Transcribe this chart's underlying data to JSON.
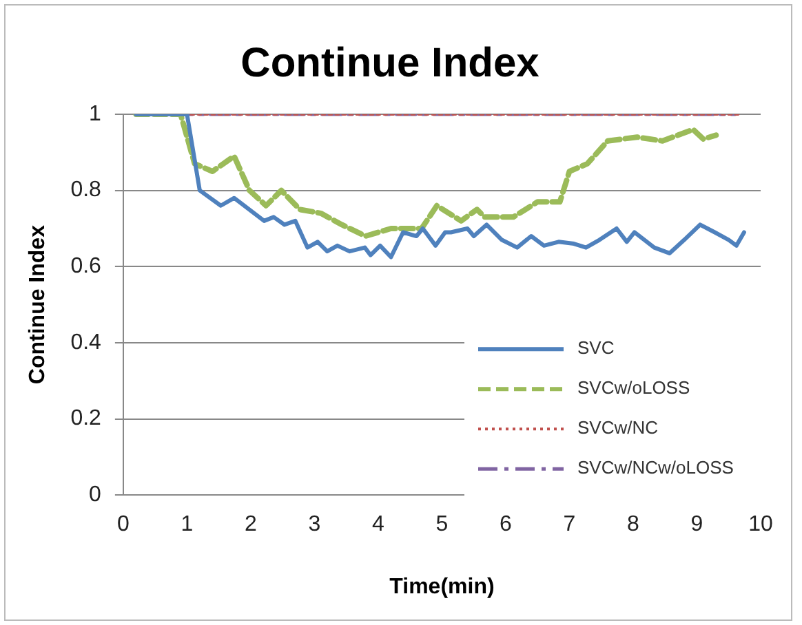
{
  "chart_data": {
    "type": "line",
    "title": "Continue Index",
    "xlabel": "Time(min)",
    "ylabel": "Continue Index",
    "xlim": [
      0,
      10
    ],
    "xticks": [
      0,
      1,
      2,
      3,
      4,
      5,
      6,
      7,
      8,
      9,
      10
    ],
    "ylim": [
      0,
      1
    ],
    "yticks": [
      0,
      0.2,
      0.4,
      0.6,
      0.8,
      1
    ],
    "grid": "y",
    "legend": "bottom right",
    "marker": "none",
    "series": [
      {
        "name": "SVC",
        "color": "#4f81bd",
        "line_style": "solid",
        "x": [
          0.2,
          1.0,
          1.2,
          1.53,
          1.74,
          2.21,
          2.36,
          2.53,
          2.7,
          2.89,
          3.05,
          3.2,
          3.36,
          3.55,
          3.79,
          3.88,
          4.03,
          4.2,
          4.39,
          4.6,
          4.7,
          4.9,
          5.05,
          5.14,
          5.4,
          5.5,
          5.7,
          5.94,
          6.18,
          6.4,
          6.6,
          6.83,
          7.07,
          7.26,
          7.47,
          7.74,
          7.9,
          8.02,
          8.33,
          8.57,
          8.8,
          9.05,
          9.28,
          9.5,
          9.62,
          9.74
        ],
        "values": [
          1,
          1,
          0.8,
          0.76,
          0.78,
          0.72,
          0.73,
          0.71,
          0.72,
          0.65,
          0.665,
          0.64,
          0.655,
          0.64,
          0.65,
          0.63,
          0.655,
          0.625,
          0.69,
          0.68,
          0.7,
          0.655,
          0.69,
          0.69,
          0.7,
          0.68,
          0.71,
          0.67,
          0.65,
          0.68,
          0.655,
          0.665,
          0.66,
          0.65,
          0.67,
          0.7,
          0.665,
          0.69,
          0.65,
          0.635,
          0.67,
          0.71,
          0.69,
          0.67,
          0.655,
          0.69
        ]
      },
      {
        "name": "SVCw/oLOSS",
        "color": "#9bbb59",
        "line_style": "dashed",
        "x": [
          0.2,
          0.9,
          1.12,
          1.4,
          1.74,
          1.98,
          2.24,
          2.48,
          2.77,
          3.1,
          3.43,
          3.8,
          4.2,
          4.68,
          4.92,
          5.3,
          5.55,
          5.67,
          6.12,
          6.5,
          6.85,
          7.0,
          7.28,
          7.6,
          8.06,
          8.46,
          8.94,
          9.1,
          9.3
        ],
        "values": [
          1,
          1,
          0.87,
          0.85,
          0.89,
          0.8,
          0.76,
          0.8,
          0.75,
          0.74,
          0.71,
          0.68,
          0.7,
          0.7,
          0.76,
          0.72,
          0.75,
          0.73,
          0.73,
          0.77,
          0.77,
          0.85,
          0.87,
          0.93,
          0.94,
          0.93,
          0.96,
          0.935,
          0.945
        ]
      },
      {
        "name": "SVCw/NC",
        "color": "#c0504d",
        "line_style": "dotted",
        "x": [
          0.2,
          9.7
        ],
        "values": [
          1,
          1
        ]
      },
      {
        "name": "SVCw/NCw/oLOSS",
        "color": "#8064a2",
        "line_style": "dashdot",
        "x": [
          0.2,
          9.6
        ],
        "values": [
          1,
          1
        ]
      }
    ]
  }
}
